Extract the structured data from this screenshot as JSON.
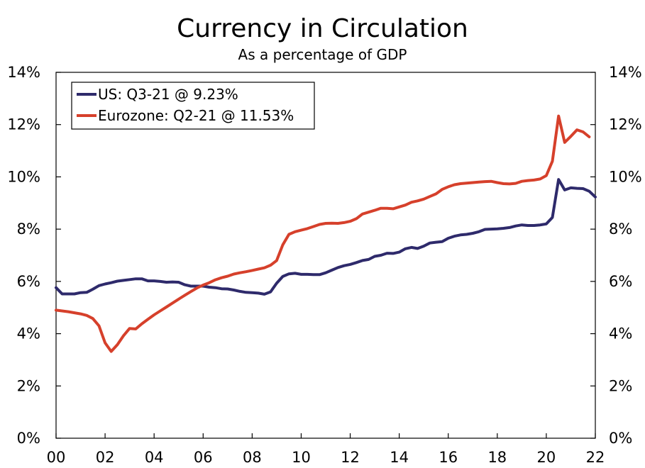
{
  "chart_data": {
    "type": "line",
    "title": "Currency in Circulation",
    "subtitle": "As a percentage of GDP",
    "xlabel": "",
    "ylabel": "",
    "xlim": [
      2000,
      2022
    ],
    "ylim": [
      0,
      14
    ],
    "x_ticks": [
      2000,
      2002,
      2004,
      2006,
      2008,
      2010,
      2012,
      2014,
      2016,
      2018,
      2020,
      2022
    ],
    "x_tick_labels": [
      "00",
      "02",
      "04",
      "06",
      "08",
      "10",
      "12",
      "14",
      "16",
      "18",
      "20",
      "22"
    ],
    "y_ticks": [
      0,
      2,
      4,
      6,
      8,
      10,
      12,
      14
    ],
    "y_tick_labels": [
      "0%",
      "2%",
      "4%",
      "6%",
      "8%",
      "10%",
      "12%",
      "14%"
    ],
    "legend_position": "top-left",
    "series": [
      {
        "name": "US: Q3-21 @ 9.23%",
        "color": "#2e2a6b",
        "points": [
          [
            2000.0,
            5.76
          ],
          [
            2000.25,
            5.52
          ],
          [
            2000.5,
            5.52
          ],
          [
            2000.75,
            5.52
          ],
          [
            2001.0,
            5.57
          ],
          [
            2001.25,
            5.58
          ],
          [
            2001.5,
            5.7
          ],
          [
            2001.75,
            5.84
          ],
          [
            2002.0,
            5.9
          ],
          [
            2002.25,
            5.95
          ],
          [
            2002.5,
            6.01
          ],
          [
            2002.75,
            6.04
          ],
          [
            2003.0,
            6.07
          ],
          [
            2003.25,
            6.1
          ],
          [
            2003.5,
            6.1
          ],
          [
            2003.75,
            6.02
          ],
          [
            2004.0,
            6.02
          ],
          [
            2004.25,
            6.0
          ],
          [
            2004.5,
            5.97
          ],
          [
            2004.75,
            5.98
          ],
          [
            2005.0,
            5.97
          ],
          [
            2005.25,
            5.87
          ],
          [
            2005.5,
            5.82
          ],
          [
            2005.75,
            5.82
          ],
          [
            2006.0,
            5.82
          ],
          [
            2006.25,
            5.78
          ],
          [
            2006.5,
            5.76
          ],
          [
            2006.75,
            5.72
          ],
          [
            2007.0,
            5.71
          ],
          [
            2007.25,
            5.67
          ],
          [
            2007.5,
            5.62
          ],
          [
            2007.75,
            5.58
          ],
          [
            2008.0,
            5.57
          ],
          [
            2008.25,
            5.55
          ],
          [
            2008.5,
            5.51
          ],
          [
            2008.75,
            5.6
          ],
          [
            2009.0,
            5.93
          ],
          [
            2009.25,
            6.19
          ],
          [
            2009.5,
            6.29
          ],
          [
            2009.75,
            6.31
          ],
          [
            2010.0,
            6.27
          ],
          [
            2010.25,
            6.27
          ],
          [
            2010.5,
            6.26
          ],
          [
            2010.75,
            6.26
          ],
          [
            2011.0,
            6.33
          ],
          [
            2011.25,
            6.43
          ],
          [
            2011.5,
            6.53
          ],
          [
            2011.75,
            6.6
          ],
          [
            2012.0,
            6.65
          ],
          [
            2012.25,
            6.72
          ],
          [
            2012.5,
            6.8
          ],
          [
            2012.75,
            6.84
          ],
          [
            2013.0,
            6.96
          ],
          [
            2013.25,
            7.0
          ],
          [
            2013.5,
            7.08
          ],
          [
            2013.75,
            7.07
          ],
          [
            2014.0,
            7.12
          ],
          [
            2014.25,
            7.25
          ],
          [
            2014.5,
            7.3
          ],
          [
            2014.75,
            7.26
          ],
          [
            2015.0,
            7.35
          ],
          [
            2015.25,
            7.47
          ],
          [
            2015.5,
            7.5
          ],
          [
            2015.75,
            7.52
          ],
          [
            2016.0,
            7.65
          ],
          [
            2016.25,
            7.73
          ],
          [
            2016.5,
            7.78
          ],
          [
            2016.75,
            7.8
          ],
          [
            2017.0,
            7.84
          ],
          [
            2017.25,
            7.9
          ],
          [
            2017.5,
            7.99
          ],
          [
            2017.75,
            8.0
          ],
          [
            2018.0,
            8.01
          ],
          [
            2018.25,
            8.03
          ],
          [
            2018.5,
            8.06
          ],
          [
            2018.75,
            8.12
          ],
          [
            2019.0,
            8.16
          ],
          [
            2019.25,
            8.14
          ],
          [
            2019.5,
            8.14
          ],
          [
            2019.75,
            8.16
          ],
          [
            2020.0,
            8.2
          ],
          [
            2020.25,
            8.45
          ],
          [
            2020.5,
            9.9
          ],
          [
            2020.75,
            9.5
          ],
          [
            2021.0,
            9.58
          ],
          [
            2021.25,
            9.56
          ],
          [
            2021.5,
            9.55
          ],
          [
            2021.75,
            9.45
          ],
          [
            2022.0,
            9.23
          ]
        ]
      },
      {
        "name": "Eurozone: Q2-21 @ 11.53%",
        "color": "#d6402b",
        "points": [
          [
            2000.0,
            4.9
          ],
          [
            2000.25,
            4.87
          ],
          [
            2000.5,
            4.84
          ],
          [
            2000.75,
            4.8
          ],
          [
            2001.0,
            4.76
          ],
          [
            2001.25,
            4.7
          ],
          [
            2001.5,
            4.58
          ],
          [
            2001.75,
            4.3
          ],
          [
            2002.0,
            3.65
          ],
          [
            2002.25,
            3.32
          ],
          [
            2002.5,
            3.58
          ],
          [
            2002.75,
            3.92
          ],
          [
            2003.0,
            4.2
          ],
          [
            2003.25,
            4.18
          ],
          [
            2003.5,
            4.38
          ],
          [
            2003.75,
            4.55
          ],
          [
            2004.0,
            4.72
          ],
          [
            2004.25,
            4.87
          ],
          [
            2004.5,
            5.02
          ],
          [
            2004.75,
            5.17
          ],
          [
            2005.0,
            5.32
          ],
          [
            2005.25,
            5.47
          ],
          [
            2005.5,
            5.61
          ],
          [
            2005.75,
            5.75
          ],
          [
            2006.0,
            5.86
          ],
          [
            2006.25,
            5.95
          ],
          [
            2006.5,
            6.06
          ],
          [
            2006.75,
            6.14
          ],
          [
            2007.0,
            6.2
          ],
          [
            2007.25,
            6.28
          ],
          [
            2007.5,
            6.33
          ],
          [
            2007.75,
            6.37
          ],
          [
            2008.0,
            6.42
          ],
          [
            2008.25,
            6.47
          ],
          [
            2008.5,
            6.52
          ],
          [
            2008.75,
            6.62
          ],
          [
            2009.0,
            6.8
          ],
          [
            2009.25,
            7.4
          ],
          [
            2009.5,
            7.8
          ],
          [
            2009.75,
            7.9
          ],
          [
            2010.0,
            7.96
          ],
          [
            2010.25,
            8.02
          ],
          [
            2010.5,
            8.1
          ],
          [
            2010.75,
            8.18
          ],
          [
            2011.0,
            8.22
          ],
          [
            2011.25,
            8.23
          ],
          [
            2011.5,
            8.22
          ],
          [
            2011.75,
            8.25
          ],
          [
            2012.0,
            8.3
          ],
          [
            2012.25,
            8.4
          ],
          [
            2012.5,
            8.58
          ],
          [
            2012.75,
            8.65
          ],
          [
            2013.0,
            8.72
          ],
          [
            2013.25,
            8.8
          ],
          [
            2013.5,
            8.8
          ],
          [
            2013.75,
            8.78
          ],
          [
            2014.0,
            8.85
          ],
          [
            2014.25,
            8.92
          ],
          [
            2014.5,
            9.03
          ],
          [
            2014.75,
            9.08
          ],
          [
            2015.0,
            9.15
          ],
          [
            2015.25,
            9.25
          ],
          [
            2015.5,
            9.35
          ],
          [
            2015.75,
            9.52
          ],
          [
            2016.0,
            9.62
          ],
          [
            2016.25,
            9.7
          ],
          [
            2016.5,
            9.74
          ],
          [
            2016.75,
            9.76
          ],
          [
            2017.0,
            9.78
          ],
          [
            2017.25,
            9.8
          ],
          [
            2017.5,
            9.82
          ],
          [
            2017.75,
            9.83
          ],
          [
            2018.0,
            9.78
          ],
          [
            2018.25,
            9.74
          ],
          [
            2018.5,
            9.73
          ],
          [
            2018.75,
            9.75
          ],
          [
            2019.0,
            9.83
          ],
          [
            2019.25,
            9.86
          ],
          [
            2019.5,
            9.88
          ],
          [
            2019.75,
            9.92
          ],
          [
            2020.0,
            10.05
          ],
          [
            2020.25,
            10.6
          ],
          [
            2020.5,
            12.33
          ],
          [
            2020.75,
            11.32
          ],
          [
            2021.0,
            11.55
          ],
          [
            2021.25,
            11.8
          ],
          [
            2021.5,
            11.72
          ],
          [
            2021.75,
            11.53
          ]
        ]
      }
    ]
  }
}
